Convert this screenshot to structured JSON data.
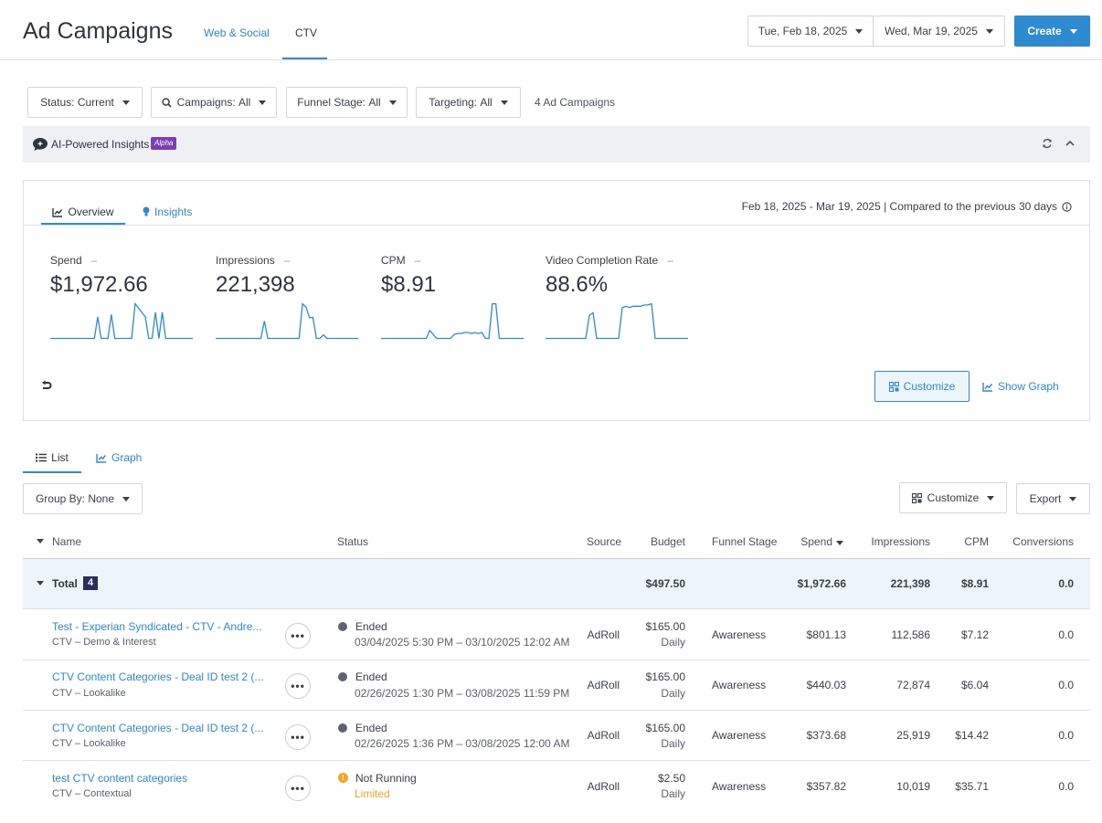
{
  "header": {
    "title": "Ad Campaigns",
    "tabs": [
      {
        "label": "Web & Social"
      },
      {
        "label": "CTV"
      }
    ],
    "start_date": "Tue, Feb 18, 2025",
    "end_date": "Wed, Mar 19, 2025",
    "create_label": "Create"
  },
  "filters": {
    "status_label": "Status:",
    "status_value": "Current",
    "campaigns_label": "Campaigns:",
    "campaigns_value": "All",
    "funnel_label": "Funnel Stage:",
    "funnel_value": "All",
    "targeting_label": "Targeting:",
    "targeting_value": "All",
    "count_text": "4 Ad Campaigns"
  },
  "insights_bar": {
    "title": "AI-Powered Insights",
    "badge": "Alpha"
  },
  "overview": {
    "tab_overview": "Overview",
    "tab_insights": "Insights",
    "range_text": "Feb 18, 2025 - Mar 19, 2025 | Compared to the previous 30 days",
    "metrics": [
      {
        "label": "Spend",
        "change": "–",
        "value": "$1,972.66"
      },
      {
        "label": "Impressions",
        "change": "–",
        "value": "221,398"
      },
      {
        "label": "CPM",
        "change": "–",
        "value": "$8.91"
      },
      {
        "label": "Video Completion Rate",
        "change": "–",
        "value": "88.6%"
      }
    ],
    "customize_label": "Customize",
    "show_graph_label": "Show Graph"
  },
  "sparklines": [
    [
      0,
      0,
      0,
      0,
      0,
      0,
      0,
      0,
      0,
      0,
      0,
      0,
      0,
      0,
      1,
      0,
      0,
      0,
      1.1,
      0,
      0,
      0,
      0,
      0,
      0,
      1.6,
      1.4,
      1.2,
      1.0,
      0,
      0,
      1.2,
      0,
      1.2,
      0,
      0,
      0,
      0,
      0,
      0,
      0,
      0,
      0
    ],
    [
      0,
      0,
      0,
      0,
      0,
      0,
      0,
      0,
      0,
      0,
      0,
      0,
      0,
      0,
      1,
      0,
      0,
      0,
      0,
      0,
      0,
      0,
      0,
      0,
      0,
      2,
      1.8,
      1.2,
      1.2,
      0,
      0,
      0.2,
      0,
      0,
      0,
      0,
      0,
      0,
      0,
      0,
      0,
      0
    ],
    [
      0,
      0,
      0,
      0,
      0,
      0,
      0,
      0,
      0,
      0,
      0,
      0,
      0,
      0,
      0.8,
      0.4,
      0,
      0,
      0,
      0,
      0,
      0.4,
      0.5,
      0.5,
      0.6,
      0.6,
      0.5,
      0.6,
      0.5,
      0.6,
      0,
      0,
      3.5,
      3.5,
      0,
      0,
      0,
      0,
      0,
      0,
      0,
      0
    ],
    [
      0,
      0,
      0,
      0,
      0,
      0,
      0,
      0,
      0,
      0,
      0,
      0,
      1.8,
      2.0,
      0,
      0,
      0,
      0,
      0,
      0,
      0,
      2.4,
      2.5,
      2.4,
      2.5,
      2.5,
      2.5,
      2.6,
      2.6,
      2.7,
      0,
      0,
      0,
      0,
      0,
      0,
      0,
      0,
      0,
      0
    ]
  ],
  "list_tabs": {
    "list": "List",
    "graph": "Graph"
  },
  "group_by": {
    "label": "Group By:",
    "value": "None"
  },
  "table_customize_label": "Customize",
  "export_label": "Export",
  "table": {
    "headers": {
      "name": "Name",
      "status": "Status",
      "source": "Source",
      "budget": "Budget",
      "funnel": "Funnel Stage",
      "spend": "Spend",
      "impressions": "Impressions",
      "cpm": "CPM",
      "conversions": "Conversions"
    },
    "total": {
      "label": "Total",
      "count": "4",
      "budget": "$497.50",
      "spend": "$1,972.66",
      "impressions": "221,398",
      "cpm": "$8.91",
      "conversions": "0.0"
    },
    "rows": [
      {
        "name": "Test - Experian Syndicated - CTV - Andre...",
        "sub": "CTV – Demo & Interest",
        "status": "Ended",
        "status_detail": "03/04/2025 5:30 PM – 03/10/2025 12:02 AM",
        "source": "AdRoll",
        "budget": "$165.00",
        "budget_period": "Daily",
        "funnel": "Awareness",
        "spend": "$801.13",
        "impressions": "112,586",
        "cpm": "$7.12",
        "conversions": "0.0"
      },
      {
        "name": "CTV Content Categories - Deal ID test 2 (...",
        "sub": "CTV – Lookalike",
        "status": "Ended",
        "status_detail": "02/26/2025 1:30 PM – 03/08/2025 11:59 PM",
        "source": "AdRoll",
        "budget": "$165.00",
        "budget_period": "Daily",
        "funnel": "Awareness",
        "spend": "$440.03",
        "impressions": "72,874",
        "cpm": "$6.04",
        "conversions": "0.0"
      },
      {
        "name": "CTV Content Categories - Deal ID test 2 (...",
        "sub": "CTV – Lookalike",
        "status": "Ended",
        "status_detail": "02/26/2025 1:36 PM – 03/08/2025 12:00 AM",
        "source": "AdRoll",
        "budget": "$165.00",
        "budget_period": "Daily",
        "funnel": "Awareness",
        "spend": "$373.68",
        "impressions": "25,919",
        "cpm": "$14.42",
        "conversions": "0.0"
      },
      {
        "name": "test CTV content categories",
        "sub": "CTV – Contextual",
        "status": "Not Running",
        "status_detail": "Limited",
        "source": "AdRoll",
        "budget": "$2.50",
        "budget_period": "Daily",
        "funnel": "Awareness",
        "spend": "$357.82",
        "impressions": "10,019",
        "cpm": "$35.71",
        "conversions": "0.0"
      }
    ]
  },
  "colors": {
    "accent": "#2d8bd1",
    "alpha_badge": "#7b3fb5",
    "warning": "#f5a623",
    "total_row_bg": "#eef5fa"
  }
}
